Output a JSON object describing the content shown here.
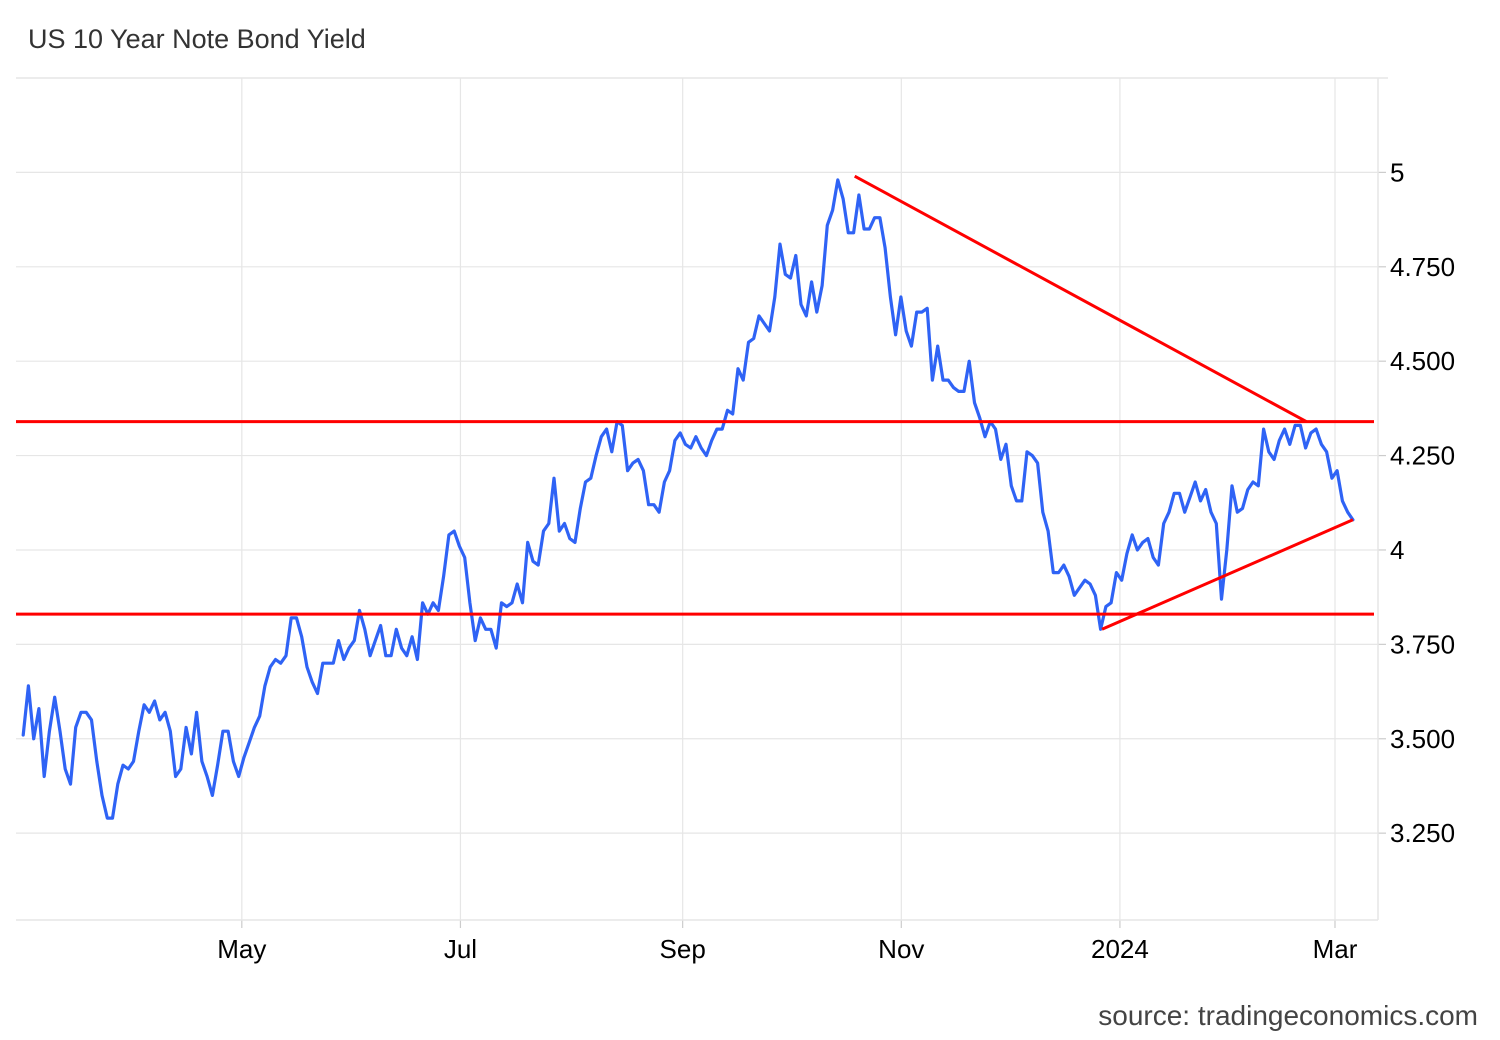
{
  "title": "US 10 Year Note Bond Yield",
  "source": "source: tradingeconomics.com",
  "colors": {
    "line": "#2f63f5",
    "trendline": "#ff0000",
    "grid": "#e6e6e6"
  },
  "chart_data": {
    "type": "line",
    "title": "US 10 Year Note Bond Yield",
    "xlabel": "",
    "ylabel": "",
    "x_start": "2023-03-01",
    "x_end": "2024-03-06",
    "x_range": [
      "2023-02-27",
      "2024-03-13"
    ],
    "ylim": [
      3.02,
      5.25
    ],
    "grid": true,
    "legend": "none",
    "x_ticks": [
      {
        "label": "May",
        "date": "2023-05-01"
      },
      {
        "label": "Jul",
        "date": "2023-07-01"
      },
      {
        "label": "Sep",
        "date": "2023-09-01"
      },
      {
        "label": "Nov",
        "date": "2023-11-01"
      },
      {
        "label": "2024",
        "date": "2024-01-01"
      },
      {
        "label": "Mar",
        "date": "2024-03-01"
      }
    ],
    "y_ticks": [
      {
        "label": "3.250",
        "value": 3.25
      },
      {
        "label": "3.500",
        "value": 3.5
      },
      {
        "label": "3.750",
        "value": 3.75
      },
      {
        "label": "4",
        "value": 4.0
      },
      {
        "label": "4.250",
        "value": 4.25
      },
      {
        "label": "4.500",
        "value": 4.5
      },
      {
        "label": "4.750",
        "value": 4.75
      },
      {
        "label": "5",
        "value": 5.0
      }
    ],
    "series": [
      {
        "values": [
          3.51,
          3.64,
          3.5,
          3.58,
          3.4,
          3.52,
          3.61,
          3.52,
          3.42,
          3.38,
          3.53,
          3.57,
          3.57,
          3.55,
          3.44,
          3.35,
          3.29,
          3.29,
          3.38,
          3.43,
          3.42,
          3.44,
          3.52,
          3.59,
          3.57,
          3.6,
          3.55,
          3.57,
          3.52,
          3.4,
          3.42,
          3.53,
          3.46,
          3.57,
          3.44,
          3.4,
          3.35,
          3.43,
          3.52,
          3.52,
          3.44,
          3.4,
          3.45,
          3.49,
          3.53,
          3.56,
          3.64,
          3.69,
          3.71,
          3.7,
          3.72,
          3.82,
          3.82,
          3.77,
          3.69,
          3.65,
          3.62,
          3.7,
          3.7,
          3.7,
          3.76,
          3.71,
          3.74,
          3.76,
          3.84,
          3.79,
          3.72,
          3.76,
          3.8,
          3.72,
          3.72,
          3.79,
          3.74,
          3.72,
          3.77,
          3.71,
          3.86,
          3.83,
          3.86,
          3.84,
          3.93,
          4.04,
          4.05,
          4.01,
          3.98,
          3.86,
          3.76,
          3.82,
          3.79,
          3.79,
          3.74,
          3.86,
          3.85,
          3.86,
          3.91,
          3.86,
          4.02,
          3.97,
          3.96,
          4.05,
          4.07,
          4.19,
          4.05,
          4.07,
          4.03,
          4.02,
          4.11,
          4.18,
          4.19,
          4.25,
          4.3,
          4.32,
          4.26,
          4.34,
          4.33,
          4.21,
          4.23,
          4.24,
          4.21,
          4.12,
          4.12,
          4.1,
          4.18,
          4.21,
          4.29,
          4.31,
          4.28,
          4.27,
          4.3,
          4.27,
          4.25,
          4.29,
          4.32,
          4.32,
          4.37,
          4.36,
          4.48,
          4.45,
          4.55,
          4.56,
          4.62,
          4.6,
          4.58,
          4.67,
          4.81,
          4.73,
          4.72,
          4.78,
          4.65,
          4.62,
          4.71,
          4.63,
          4.7,
          4.86,
          4.9,
          4.98,
          4.93,
          4.84,
          4.84,
          4.94,
          4.85,
          4.85,
          4.88,
          4.88,
          4.8,
          4.67,
          4.57,
          4.67,
          4.58,
          4.54,
          4.63,
          4.63,
          4.64,
          4.45,
          4.54,
          4.45,
          4.45,
          4.43,
          4.42,
          4.42,
          4.5,
          4.39,
          4.35,
          4.3,
          4.34,
          4.32,
          4.24,
          4.28,
          4.17,
          4.13,
          4.13,
          4.26,
          4.25,
          4.23,
          4.1,
          4.05,
          3.94,
          3.94,
          3.96,
          3.93,
          3.88,
          3.9,
          3.92,
          3.91,
          3.88,
          3.79,
          3.85,
          3.86,
          3.94,
          3.92,
          3.99,
          4.04,
          4.0,
          4.02,
          4.03,
          3.98,
          3.96,
          4.07,
          4.1,
          4.15,
          4.15,
          4.1,
          4.14,
          4.18,
          4.13,
          4.16,
          4.1,
          4.07,
          3.87,
          4.0,
          4.17,
          4.1,
          4.11,
          4.16,
          4.18,
          4.17,
          4.32,
          4.26,
          4.24,
          4.29,
          4.32,
          4.28,
          4.33,
          4.33,
          4.27,
          4.31,
          4.32,
          4.28,
          4.26,
          4.19,
          4.21,
          4.13,
          4.1,
          4.08
        ]
      }
    ],
    "horizontal_lines": [
      4.34,
      3.83
    ],
    "trendlines": [
      {
        "from": {
          "date": "2023-10-19",
          "value": 4.99
        },
        "to": {
          "date": "2024-02-22",
          "value": 4.34
        }
      },
      {
        "from": {
          "date": "2023-12-27",
          "value": 3.79
        },
        "to": {
          "date": "2024-03-06",
          "value": 4.08
        }
      }
    ]
  }
}
